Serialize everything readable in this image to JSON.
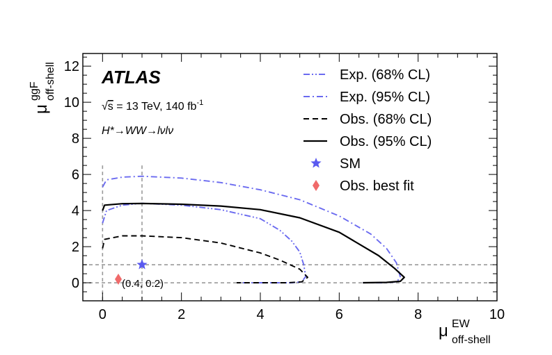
{
  "chart_data": {
    "type": "line",
    "brand": "ATLAS",
    "energy_label": {
      "sqrt": "s",
      "text": " = 13 TeV, 140 fb",
      "sup": "-1"
    },
    "process_label": "H*→WW→lνlν",
    "xlabel": {
      "base": "μ",
      "sup": "EW",
      "sub": "off-shell"
    },
    "ylabel": {
      "base": "μ",
      "sup": "ggF",
      "sub": "off-shell"
    },
    "xlim": [
      -0.5,
      10
    ],
    "ylim": [
      -1,
      12.7
    ],
    "xticks": [
      0,
      2,
      4,
      6,
      8,
      10
    ],
    "yticks": [
      0,
      2,
      4,
      6,
      8,
      10,
      12
    ],
    "reference_lines": {
      "vertical": [
        0,
        1
      ],
      "horizontal": [
        0,
        1
      ],
      "color": "#999999"
    },
    "series": [
      {
        "name": "Exp. (68% CL)",
        "style": "dashdotdot",
        "color": "#6a6af0",
        "points": [
          [
            0,
            3.3
          ],
          [
            0.1,
            4.0
          ],
          [
            0.5,
            4.3
          ],
          [
            1,
            4.4
          ],
          [
            2,
            4.3
          ],
          [
            3,
            4.05
          ],
          [
            4,
            3.55
          ],
          [
            4.5,
            2.9
          ],
          [
            4.8,
            2.3
          ],
          [
            5.0,
            1.7
          ],
          [
            5.1,
            1.0
          ],
          [
            5.15,
            0.35
          ],
          [
            5.05,
            0.05
          ],
          [
            4.8,
            0.0
          ],
          [
            4.2,
            0.0
          ],
          [
            3.4,
            0.0
          ]
        ]
      },
      {
        "name": "Exp. (95% CL)",
        "style": "dashdot",
        "color": "#6a6af0",
        "points": [
          [
            0,
            5.3
          ],
          [
            0.1,
            5.7
          ],
          [
            0.5,
            5.85
          ],
          [
            1,
            5.9
          ],
          [
            2,
            5.8
          ],
          [
            3,
            5.55
          ],
          [
            4,
            5.15
          ],
          [
            5,
            4.6
          ],
          [
            6,
            3.7
          ],
          [
            6.8,
            2.7
          ],
          [
            7.2,
            1.9
          ],
          [
            7.45,
            1.1
          ],
          [
            7.55,
            0.3
          ],
          [
            7.45,
            0.05
          ],
          [
            7.1,
            0.0
          ],
          [
            6.6,
            0.0
          ]
        ]
      },
      {
        "name": "Obs. (68% CL)",
        "style": "dashed",
        "color": "#000000",
        "points": [
          [
            0,
            1.9
          ],
          [
            0.05,
            2.4
          ],
          [
            0.5,
            2.6
          ],
          [
            1,
            2.6
          ],
          [
            2,
            2.5
          ],
          [
            3,
            2.2
          ],
          [
            4,
            1.65
          ],
          [
            4.5,
            1.25
          ],
          [
            5.0,
            0.75
          ],
          [
            5.2,
            0.3
          ],
          [
            5.05,
            0.05
          ],
          [
            4.7,
            0.0
          ],
          [
            4.0,
            0.0
          ],
          [
            3.4,
            0.0
          ]
        ]
      },
      {
        "name": "Obs. (95% CL)",
        "style": "solid",
        "color": "#000000",
        "points": [
          [
            0,
            4.0
          ],
          [
            0.05,
            4.3
          ],
          [
            0.5,
            4.38
          ],
          [
            1,
            4.39
          ],
          [
            2,
            4.35
          ],
          [
            3,
            4.25
          ],
          [
            4,
            4.05
          ],
          [
            5,
            3.6
          ],
          [
            6,
            2.8
          ],
          [
            7,
            1.5
          ],
          [
            7.4,
            0.8
          ],
          [
            7.65,
            0.3
          ],
          [
            7.55,
            0.08
          ],
          [
            7.2,
            0.02
          ],
          [
            6.6,
            0.0
          ]
        ]
      }
    ],
    "markers": [
      {
        "name": "SM",
        "shape": "star",
        "color": "#5a5af0",
        "x": 1,
        "y": 1
      },
      {
        "name": "Obs. best fit",
        "shape": "diamond",
        "color": "#f06a6a",
        "x": 0.4,
        "y": 0.2,
        "label": "(0.4, 0.2)"
      }
    ]
  }
}
